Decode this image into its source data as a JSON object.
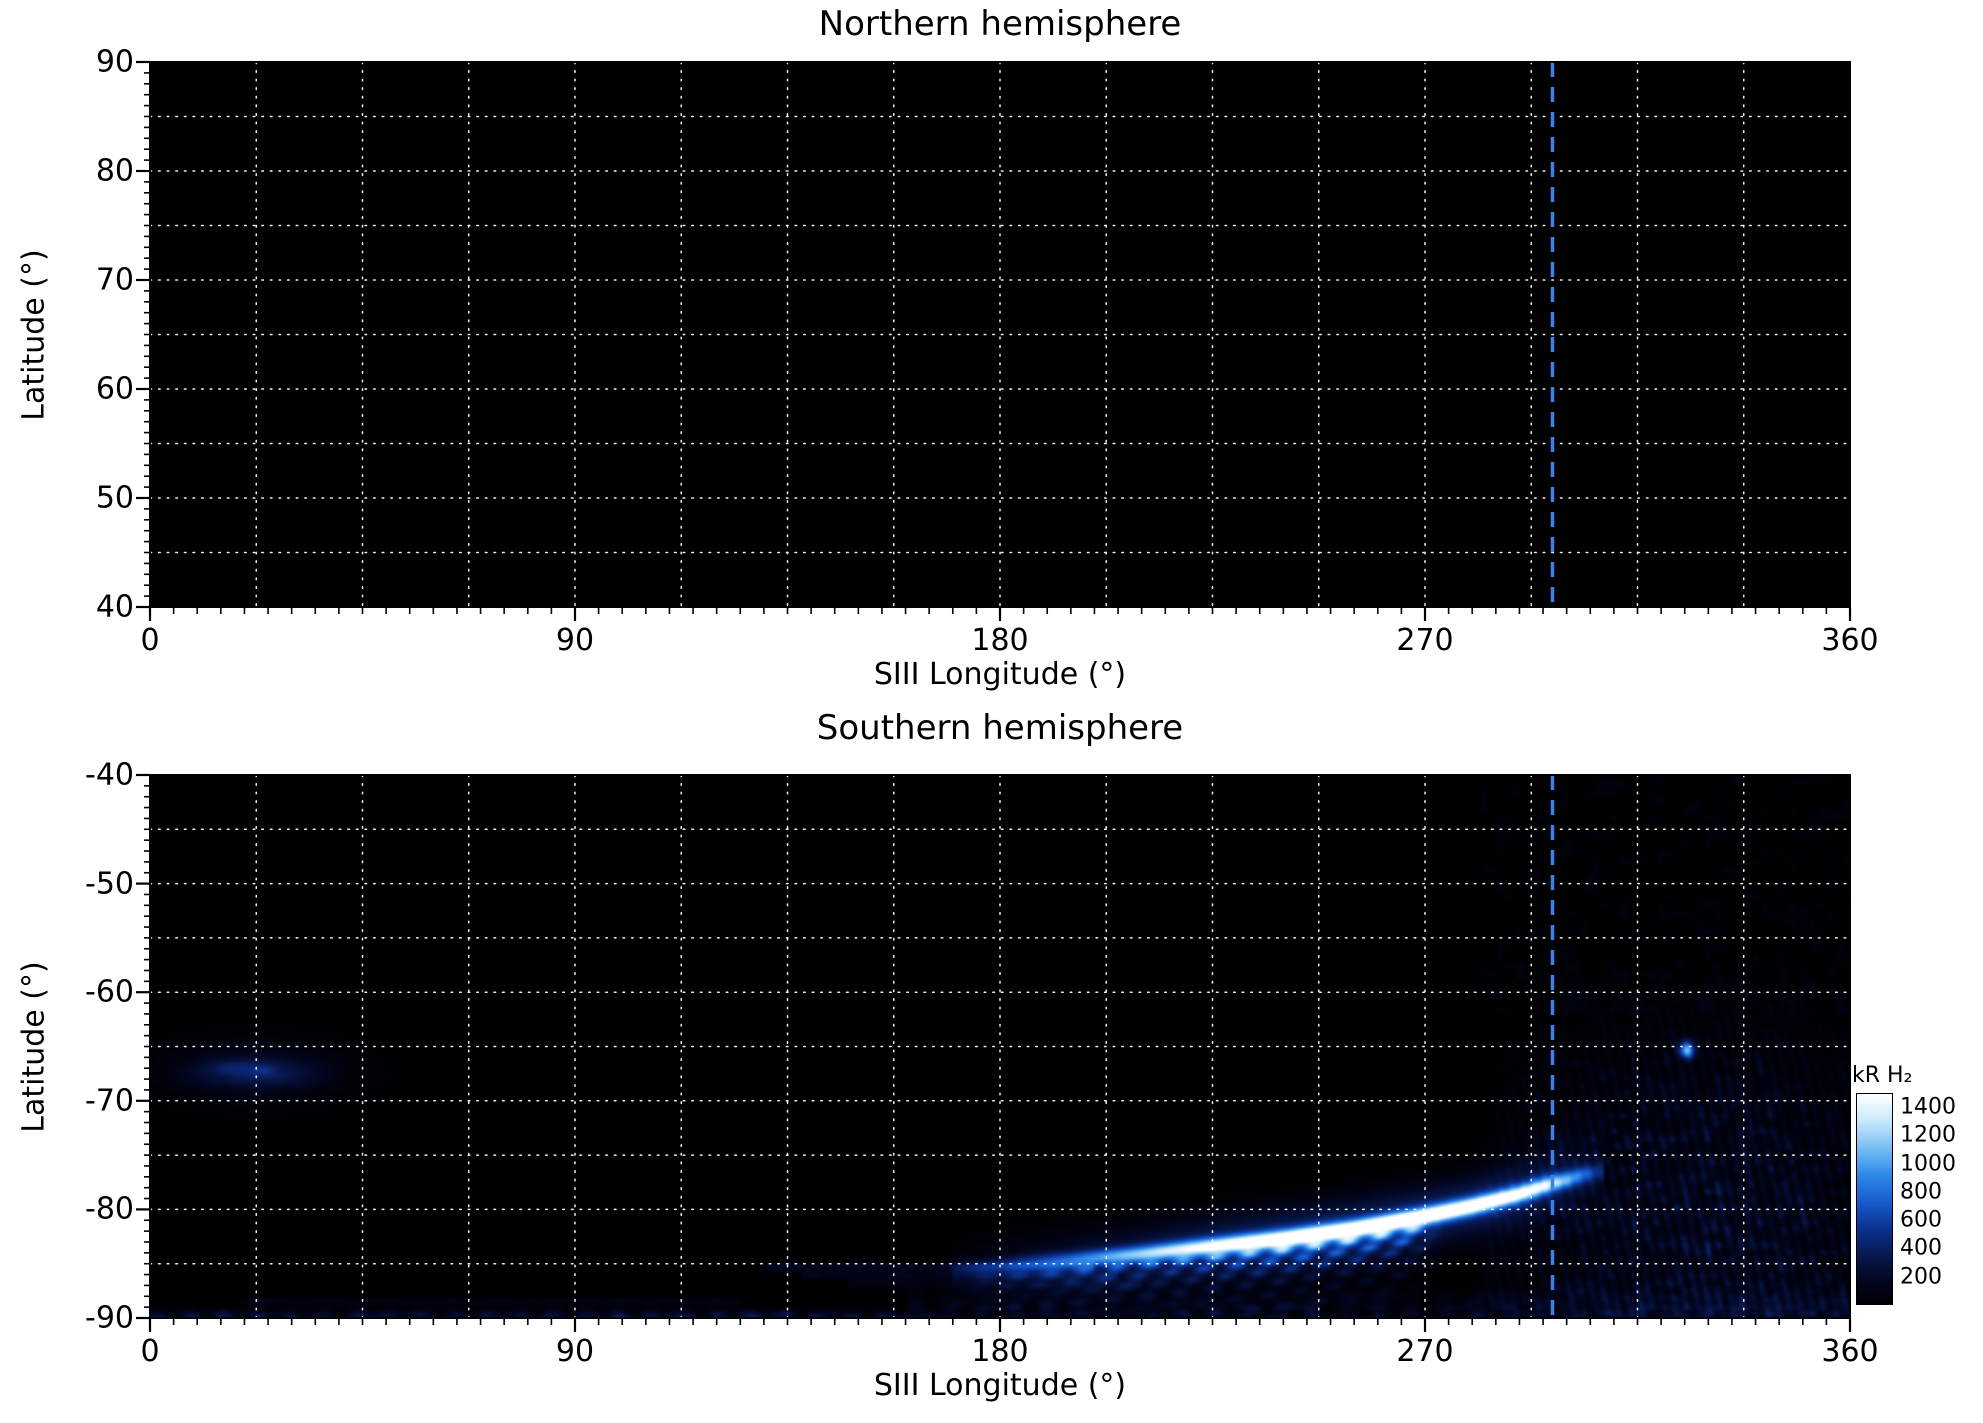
{
  "figure": {
    "background": "#ffffff",
    "kind": "two-panel auroral UV emission map"
  },
  "chart_data": {
    "type": "heatmap",
    "x": {
      "label": "SIII Longitude (°)",
      "range": [
        0,
        360
      ],
      "ticks": [
        0,
        90,
        180,
        270,
        360
      ],
      "grid_step_deg": 22.5
    },
    "grid": {
      "style": "dotted",
      "color": "#ffffff"
    },
    "marker_line": {
      "longitude": 297,
      "style": "dashed",
      "color": "#3f7fe8"
    },
    "panels": [
      {
        "hemisphere": "north",
        "title": "Northern hemisphere",
        "y": {
          "label": "Latitude (°)",
          "range": [
            40,
            90
          ],
          "ticks": [
            90,
            80,
            70,
            60,
            50,
            40
          ],
          "grid_step_deg": 5
        },
        "emission": "no emission visible (background level, below ~100 kR everywhere)",
        "features": []
      },
      {
        "hemisphere": "south",
        "title": "Southern hemisphere",
        "y": {
          "label": "Latitude (°)",
          "range": [
            -90,
            -40
          ],
          "ticks": [
            -40,
            -50,
            -60,
            -70,
            -80,
            -90
          ],
          "grid_step_deg": 5
        },
        "features": [
          {
            "kind": "arc",
            "name": "main auroral arc",
            "peak_kR": 1550,
            "path_lon_lat_kR": [
              [
                170,
                -85.6,
                150
              ],
              [
                180,
                -85.2,
                350
              ],
              [
                195,
                -84.7,
                650
              ],
              [
                210,
                -84.1,
                950
              ],
              [
                225,
                -83.4,
                1250
              ],
              [
                240,
                -82.7,
                1500
              ],
              [
                255,
                -81.8,
                1550
              ],
              [
                268,
                -80.8,
                1550
              ],
              [
                280,
                -79.7,
                1450
              ],
              [
                290,
                -78.6,
                1250
              ],
              [
                297,
                -77.6,
                1000
              ],
              [
                303,
                -76.9,
                600
              ],
              [
                308,
                -76.4,
                250
              ]
            ],
            "core_sigma_deg": 0.55,
            "glow_sigma_deg": 1.9,
            "glow_fraction": 0.3
          },
          {
            "kind": "fan",
            "name": "equatorward striations below main arc",
            "lon_range": [
              166,
              274
            ],
            "offsets_deg": [
              1.1,
              2.0,
              2.9,
              3.9,
              5.0,
              6.2
            ],
            "relative_intensity": [
              0.45,
              0.32,
              0.23,
              0.16,
              0.11,
              0.07
            ],
            "sigma_deg": 0.33,
            "streak_period_deg": 7
          },
          {
            "kind": "patch",
            "name": "low-longitude patch",
            "center_lon_lat": [
              22,
              -67.3
            ],
            "sigma_lon_lat": [
              9,
              0.95
            ],
            "peak_kR": 430,
            "halo_sigma_lon_lat": [
              14,
              2.3
            ],
            "halo_kR": 130
          },
          {
            "kind": "spot",
            "name": "isolated bright spot",
            "center_lon_lat": [
              325.5,
              -65.3
            ],
            "sigma_lon_lat": [
              1.1,
              0.55
            ],
            "peak_kR": 1050
          },
          {
            "kind": "diffuse",
            "name": "polar diffuse emission",
            "center_lon_lat": [
              330,
              -84
            ],
            "sigma_lon_lat": [
              30,
              7.5
            ],
            "base_kR": 140,
            "speckle_kR": 280,
            "lon_range": [
              278,
              360
            ],
            "lat_range": [
              -90,
              -58
            ]
          },
          {
            "kind": "diffuse",
            "name": "high-longitude diffuse emission",
            "center_lon_lat": [
              328,
              -70
            ],
            "sigma_lon_lat": [
              26,
              6
            ],
            "base_kR": 70,
            "speckle_kR": 170,
            "lon_range": [
              280,
              360
            ],
            "lat_range": [
              -82,
              -56
            ]
          },
          {
            "kind": "band",
            "name": "bottom edge glow left",
            "lon_range": [
              0,
              160
            ],
            "lat_range": [
              -90,
              -88.9
            ],
            "kR": 300,
            "speckle_kR": 200
          },
          {
            "kind": "band",
            "name": "bottom edge glow right",
            "lon_range": [
              160,
              360
            ],
            "lat_range": [
              -90,
              -86.8
            ],
            "kR": 150,
            "speckle_kR": 170
          },
          {
            "kind": "rows",
            "name": "faint striation tails",
            "sigma_deg": 0.3,
            "rows_lon0_lon1_lat_kR": [
              [
                130,
                200,
                -85.3,
                190
              ],
              [
                138,
                205,
                -86.1,
                150
              ],
              [
                148,
                210,
                -86.9,
                120
              ],
              [
                20,
                125,
                -88.5,
                130
              ]
            ]
          },
          {
            "kind": "speckle",
            "name": "faint background texture upper right",
            "lon_range": [
              282,
              360
            ],
            "lat_range": [
              -62,
              -40
            ],
            "amplitude_kR": 55
          }
        ]
      }
    ],
    "colorbar": {
      "label": "kR H₂",
      "ticks": [
        1400,
        1200,
        1000,
        800,
        600,
        400,
        200
      ],
      "value_range": [
        0,
        1500
      ],
      "gradient_stops": [
        [
          0,
          "#000000"
        ],
        [
          0.1,
          "#02051e"
        ],
        [
          0.22,
          "#071647"
        ],
        [
          0.35,
          "#0b308d"
        ],
        [
          0.48,
          "#1659c9"
        ],
        [
          0.62,
          "#2f8ce8"
        ],
        [
          0.75,
          "#7cc1f4"
        ],
        [
          0.88,
          "#cdeafb"
        ],
        [
          1,
          "#ffffff"
        ]
      ]
    }
  }
}
